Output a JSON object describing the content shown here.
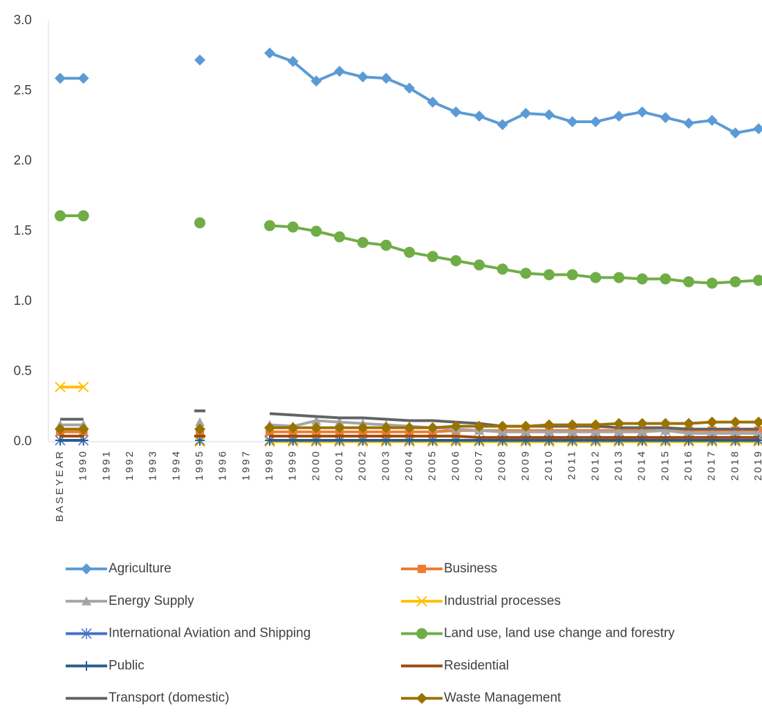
{
  "chart_data": {
    "type": "line",
    "categories": [
      "BASEYEAR",
      "1990",
      "1991",
      "1992",
      "1993",
      "1994",
      "1995",
      "1996",
      "1997",
      "1998",
      "1999",
      "2000",
      "2001",
      "2002",
      "2003",
      "2004",
      "2005",
      "2006",
      "2007",
      "2008",
      "2009",
      "2010",
      "2011",
      "2012",
      "2013",
      "2014",
      "2015",
      "2016",
      "2017",
      "2018",
      "2019"
    ],
    "ylim": [
      0,
      3
    ],
    "yticks": [
      {
        "value": 0,
        "label": "0.0"
      },
      0.5,
      {
        "value": 1,
        "label": "1.0"
      },
      1.5,
      {
        "value": 2,
        "label": "2.0"
      },
      2.5,
      {
        "value": 3,
        "label": "3.0"
      }
    ],
    "grid": false,
    "series": [
      {
        "name": "Agriculture",
        "color": "#5b9bd5",
        "marker": "diamond",
        "values": [
          2.59,
          2.59,
          null,
          null,
          null,
          null,
          2.72,
          null,
          null,
          2.77,
          2.71,
          2.57,
          2.64,
          2.6,
          2.59,
          2.52,
          2.42,
          2.35,
          2.32,
          2.26,
          2.34,
          2.33,
          2.28,
          2.28,
          2.32,
          2.35,
          2.31,
          2.27,
          2.29,
          2.2,
          2.23
        ]
      },
      {
        "name": "Business",
        "color": "#ed7d31",
        "marker": "square",
        "values": [
          0.07,
          0.07,
          null,
          null,
          null,
          null,
          0.07,
          null,
          null,
          0.07,
          0.07,
          0.07,
          0.07,
          0.07,
          0.07,
          0.07,
          0.07,
          0.08,
          0.08,
          0.08,
          0.08,
          0.08,
          0.08,
          0.08,
          0.08,
          0.08,
          0.08,
          0.08,
          0.08,
          0.08,
          0.08
        ]
      },
      {
        "name": "Energy Supply",
        "color": "#a5a5a5",
        "marker": "triangle",
        "values": [
          0.12,
          0.12,
          null,
          null,
          null,
          null,
          0.14,
          null,
          null,
          0.12,
          0.11,
          0.15,
          0.14,
          0.13,
          0.12,
          0.11,
          0.1,
          0.09,
          0.08,
          0.07,
          0.07,
          0.07,
          0.07,
          0.07,
          0.07,
          0.07,
          0.08,
          0.06,
          0.06,
          0.06,
          0.06
        ]
      },
      {
        "name": "Industrial processes",
        "color": "#ffc000",
        "marker": "x",
        "values": [
          0.39,
          0.39,
          null,
          null,
          null,
          null,
          0,
          null,
          null,
          0,
          0,
          0,
          0,
          0,
          0,
          0,
          0,
          0,
          0,
          0,
          0,
          0,
          0,
          0,
          0,
          0,
          0,
          0,
          0,
          0,
          0
        ]
      },
      {
        "name": "International Aviation and Shipping",
        "color": "#4472c4",
        "marker": "star",
        "values": [
          0.01,
          0.01,
          null,
          null,
          null,
          null,
          0.01,
          null,
          null,
          0.01,
          0.01,
          0.01,
          0.01,
          0.01,
          0.01,
          0.01,
          0.01,
          0.01,
          0.01,
          0.01,
          0.01,
          0.01,
          0.01,
          0.01,
          0.01,
          0.01,
          0.01,
          0.01,
          0.01,
          0.01,
          0.01
        ]
      },
      {
        "name": "Land use, land use change and forestry",
        "color": "#70ad47",
        "marker": "circle",
        "values": [
          1.61,
          1.61,
          null,
          null,
          null,
          null,
          1.56,
          null,
          null,
          1.54,
          1.53,
          1.5,
          1.46,
          1.42,
          1.4,
          1.35,
          1.32,
          1.29,
          1.26,
          1.23,
          1.2,
          1.19,
          1.19,
          1.17,
          1.17,
          1.16,
          1.16,
          1.14,
          1.13,
          1.14,
          1.15
        ]
      },
      {
        "name": "Public",
        "color": "#255e91",
        "marker": "plus",
        "values": [
          0.01,
          0.01,
          null,
          null,
          null,
          null,
          0.01,
          null,
          null,
          0.01,
          0.01,
          0.01,
          0.01,
          0.01,
          0.01,
          0.01,
          0.01,
          0.01,
          0.01,
          0.01,
          0.01,
          0.01,
          0.01,
          0.01,
          0.01,
          0.01,
          0.01,
          0.01,
          0.01,
          0.01,
          0.01
        ]
      },
      {
        "name": "Residential",
        "color": "#9e480e",
        "marker": "none",
        "values": [
          0.04,
          0.04,
          null,
          null,
          null,
          null,
          0.04,
          null,
          null,
          0.04,
          0.04,
          0.04,
          0.04,
          0.04,
          0.04,
          0.04,
          0.04,
          0.04,
          0.03,
          0.03,
          0.03,
          0.03,
          0.03,
          0.03,
          0.03,
          0.03,
          0.03,
          0.03,
          0.03,
          0.03,
          0.03
        ]
      },
      {
        "name": "Transport (domestic)",
        "color": "#636363",
        "marker": "none",
        "values": [
          0.16,
          0.16,
          null,
          null,
          null,
          null,
          0.22,
          null,
          null,
          0.2,
          0.19,
          0.18,
          0.17,
          0.17,
          0.16,
          0.15,
          0.15,
          0.14,
          0.13,
          0.11,
          0.11,
          0.11,
          0.11,
          0.11,
          0.1,
          0.1,
          0.1,
          0.09,
          0.09,
          0.09,
          0.09
        ]
      },
      {
        "name": "Waste Management",
        "color": "#997300",
        "marker": "diamond",
        "values": [
          0.09,
          0.09,
          null,
          null,
          null,
          null,
          0.09,
          null,
          null,
          0.1,
          0.1,
          0.1,
          0.1,
          0.1,
          0.1,
          0.1,
          0.1,
          0.11,
          0.11,
          0.11,
          0.11,
          0.12,
          0.12,
          0.12,
          0.13,
          0.13,
          0.13,
          0.13,
          0.14,
          0.14,
          0.14
        ]
      }
    ]
  }
}
